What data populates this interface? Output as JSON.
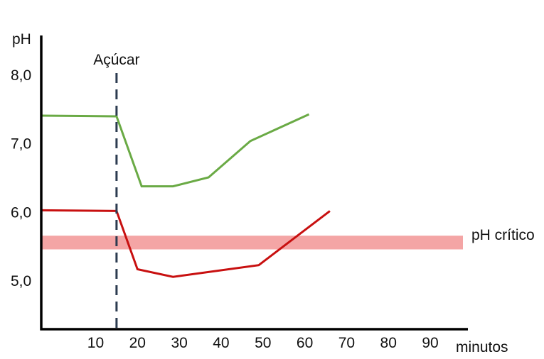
{
  "chart_data": {
    "type": "line",
    "title": "",
    "xlabel": "minutos",
    "ylabel": "pH",
    "xlim": [
      -3,
      99
    ],
    "ylim": [
      4.25,
      8.5
    ],
    "x_ticks": [
      10,
      20,
      30,
      40,
      50,
      60,
      70,
      80,
      90
    ],
    "x_tick_labels": [
      "10",
      "20",
      "30",
      "40",
      "50",
      "60",
      "70",
      "80",
      "90"
    ],
    "y_ticks": [
      5.0,
      6.0,
      7.0,
      8.0
    ],
    "y_tick_labels": [
      "5,0",
      "6,0",
      "7,0",
      "8,0"
    ],
    "grid": false,
    "series": [
      {
        "color": "#6aaa45",
        "x": [
          -3,
          15,
          21,
          28.5,
          37,
          47,
          61
        ],
        "y": [
          7.4,
          7.39,
          6.37,
          6.37,
          6.5,
          7.03,
          7.42
        ]
      },
      {
        "color": "#c81010",
        "x": [
          -3,
          15,
          20,
          28.5,
          49,
          66
        ],
        "y": [
          6.02,
          6.01,
          5.16,
          5.05,
          5.22,
          6.01
        ]
      }
    ],
    "sugar_line": {
      "x": 15,
      "label": "Açúcar",
      "color": "#2c3b50"
    },
    "critical_band": {
      "y_from": 5.45,
      "y_to": 5.65,
      "label": "pH crítico",
      "color": "#f4a5a5"
    }
  }
}
